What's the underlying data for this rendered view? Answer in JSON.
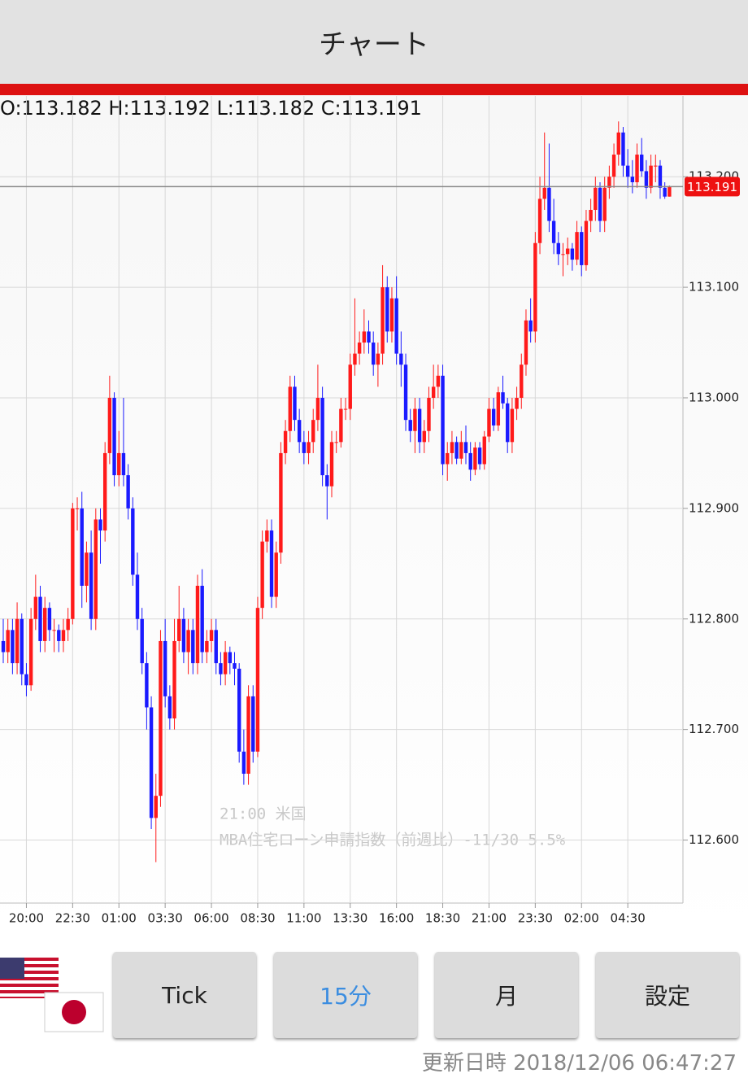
{
  "header": {
    "title": "チャート"
  },
  "chart_data": {
    "type": "candlestick",
    "ohlc_header": "O:113.182 H:113.192 L:113.182 C:113.191",
    "annotation": {
      "time": "21:00 米国",
      "text": "MBA住宅ローン申請指数（前週比）-11/30 5.5%"
    },
    "up_color": "#ff1a1a",
    "down_color": "#1a1aff",
    "grid": true,
    "ylim": [
      112.543,
      113.273
    ],
    "yticks": [
      {
        "value": 112.6,
        "label": "112.600"
      },
      {
        "value": 112.7,
        "label": "112.700"
      },
      {
        "value": 112.8,
        "label": "112.800"
      },
      {
        "value": 112.9,
        "label": "112.900"
      },
      {
        "value": 113.0,
        "label": "113.000"
      },
      {
        "value": 113.1,
        "label": "113.100"
      },
      {
        "value": 113.2,
        "label": "113.200"
      }
    ],
    "categories": [
      null,
      null,
      null,
      null,
      null,
      "20:00",
      null,
      null,
      null,
      null,
      null,
      null,
      null,
      null,
      null,
      "22:30",
      null,
      null,
      null,
      null,
      null,
      null,
      null,
      null,
      null,
      "01:00",
      null,
      null,
      null,
      null,
      null,
      null,
      null,
      null,
      null,
      "03:30",
      null,
      null,
      null,
      null,
      null,
      null,
      null,
      null,
      null,
      "06:00",
      null,
      null,
      null,
      null,
      null,
      null,
      null,
      null,
      null,
      "08:30",
      null,
      null,
      null,
      null,
      null,
      null,
      null,
      null,
      null,
      "11:00",
      null,
      null,
      null,
      null,
      null,
      null,
      null,
      null,
      null,
      "13:30",
      null,
      null,
      null,
      null,
      null,
      null,
      null,
      null,
      null,
      "16:00",
      null,
      null,
      null,
      null,
      null,
      null,
      null,
      null,
      null,
      "18:30",
      null,
      null,
      null,
      null,
      null,
      null,
      null,
      null,
      null,
      "21:00",
      null,
      null,
      null,
      null,
      null,
      null,
      null,
      null,
      null,
      "23:30",
      null,
      null,
      null,
      null,
      null,
      null,
      null,
      null,
      null,
      "02:00",
      null,
      null,
      null,
      null,
      null,
      null,
      null,
      null,
      null,
      "04:30",
      null,
      null,
      null,
      null,
      null,
      null,
      null,
      null,
      null
    ],
    "ohlc": [
      [
        112.78,
        112.8,
        112.76,
        112.77
      ],
      [
        112.77,
        112.8,
        112.76,
        112.79
      ],
      [
        112.79,
        112.8,
        112.75,
        112.76
      ],
      [
        112.76,
        112.815,
        112.75,
        112.8
      ],
      [
        112.8,
        112.805,
        112.74,
        112.75
      ],
      [
        112.75,
        112.76,
        112.73,
        112.74
      ],
      [
        112.74,
        112.81,
        112.735,
        112.8
      ],
      [
        112.8,
        112.84,
        112.79,
        112.82
      ],
      [
        112.82,
        112.83,
        112.77,
        112.78
      ],
      [
        112.78,
        112.82,
        112.77,
        112.81
      ],
      [
        112.81,
        112.815,
        112.78,
        112.79
      ],
      [
        112.79,
        112.8,
        112.77,
        112.79
      ],
      [
        112.79,
        112.795,
        112.77,
        112.78
      ],
      [
        112.78,
        112.8,
        112.77,
        112.79
      ],
      [
        112.79,
        112.81,
        112.78,
        112.8
      ],
      [
        112.8,
        112.905,
        112.795,
        112.9
      ],
      [
        112.9,
        112.91,
        112.88,
        112.9
      ],
      [
        112.9,
        112.915,
        112.81,
        112.83
      ],
      [
        112.83,
        112.87,
        112.815,
        112.86
      ],
      [
        112.86,
        112.88,
        112.79,
        112.8
      ],
      [
        112.8,
        112.9,
        112.79,
        112.89
      ],
      [
        112.89,
        112.9,
        112.85,
        112.88
      ],
      [
        112.88,
        112.96,
        112.87,
        112.95
      ],
      [
        112.95,
        113.02,
        112.94,
        113.0
      ],
      [
        113.0,
        113.005,
        112.92,
        112.93
      ],
      [
        112.93,
        112.97,
        112.92,
        112.95
      ],
      [
        112.95,
        113.0,
        112.92,
        112.93
      ],
      [
        112.93,
        112.94,
        112.89,
        112.9
      ],
      [
        112.9,
        112.91,
        112.83,
        112.84
      ],
      [
        112.84,
        112.86,
        112.79,
        112.8
      ],
      [
        112.8,
        112.81,
        112.75,
        112.76
      ],
      [
        112.76,
        112.77,
        112.7,
        112.72
      ],
      [
        112.72,
        112.73,
        112.61,
        112.62
      ],
      [
        112.62,
        112.66,
        112.58,
        112.64
      ],
      [
        112.64,
        112.79,
        112.63,
        112.78
      ],
      [
        112.78,
        112.8,
        112.72,
        112.73
      ],
      [
        112.73,
        112.74,
        112.7,
        112.71
      ],
      [
        112.71,
        112.8,
        112.7,
        112.78
      ],
      [
        112.78,
        112.83,
        112.77,
        112.8
      ],
      [
        112.8,
        112.81,
        112.76,
        112.77
      ],
      [
        112.77,
        112.8,
        112.75,
        112.79
      ],
      [
        112.79,
        112.8,
        112.75,
        112.76
      ],
      [
        112.76,
        112.84,
        112.75,
        112.83
      ],
      [
        112.83,
        112.845,
        112.76,
        112.77
      ],
      [
        112.77,
        112.79,
        112.76,
        112.78
      ],
      [
        112.78,
        112.8,
        112.77,
        112.79
      ],
      [
        112.79,
        112.8,
        112.75,
        112.76
      ],
      [
        112.76,
        112.77,
        112.74,
        112.75
      ],
      [
        112.75,
        112.78,
        112.74,
        112.77
      ],
      [
        112.77,
        112.775,
        112.75,
        112.76
      ],
      [
        112.76,
        112.77,
        112.74,
        112.755
      ],
      [
        112.755,
        112.76,
        112.67,
        112.68
      ],
      [
        112.68,
        112.7,
        112.65,
        112.66
      ],
      [
        112.66,
        112.74,
        112.65,
        112.73
      ],
      [
        112.73,
        112.74,
        112.67,
        112.68
      ],
      [
        112.68,
        112.82,
        112.675,
        112.81
      ],
      [
        112.81,
        112.88,
        112.8,
        112.87
      ],
      [
        112.87,
        112.89,
        112.86,
        112.88
      ],
      [
        112.88,
        112.89,
        112.81,
        112.82
      ],
      [
        112.82,
        112.87,
        112.81,
        112.86
      ],
      [
        112.86,
        112.96,
        112.85,
        112.95
      ],
      [
        112.95,
        112.98,
        112.94,
        112.97
      ],
      [
        112.97,
        113.02,
        112.96,
        113.01
      ],
      [
        113.01,
        113.02,
        112.97,
        112.98
      ],
      [
        112.98,
        112.99,
        112.95,
        112.96
      ],
      [
        112.96,
        112.97,
        112.94,
        112.95
      ],
      [
        112.95,
        112.97,
        112.94,
        112.96
      ],
      [
        112.96,
        112.99,
        112.95,
        112.98
      ],
      [
        112.98,
        113.03,
        112.97,
        113.0
      ],
      [
        113.0,
        113.01,
        112.92,
        112.93
      ],
      [
        112.93,
        112.94,
        112.89,
        112.92
      ],
      [
        112.92,
        112.97,
        112.91,
        112.96
      ],
      [
        112.96,
        112.97,
        112.95,
        112.96
      ],
      [
        112.96,
        113.0,
        112.955,
        112.99
      ],
      [
        112.99,
        113.0,
        112.98,
        112.99
      ],
      [
        112.99,
        113.04,
        112.98,
        113.03
      ],
      [
        113.03,
        113.09,
        113.02,
        113.04
      ],
      [
        113.04,
        113.06,
        113.03,
        113.05
      ],
      [
        113.05,
        113.08,
        113.04,
        113.06
      ],
      [
        113.06,
        113.07,
        113.04,
        113.05
      ],
      [
        113.05,
        113.06,
        113.02,
        113.03
      ],
      [
        113.03,
        113.05,
        113.01,
        113.04
      ],
      [
        113.04,
        113.12,
        113.03,
        113.1
      ],
      [
        113.1,
        113.11,
        113.05,
        113.06
      ],
      [
        113.06,
        113.1,
        113.05,
        113.09
      ],
      [
        113.09,
        113.11,
        113.03,
        113.04
      ],
      [
        113.04,
        113.06,
        113.01,
        113.03
      ],
      [
        113.03,
        113.04,
        112.97,
        112.98
      ],
      [
        112.98,
        112.99,
        112.96,
        112.97
      ],
      [
        112.97,
        113.0,
        112.95,
        112.99
      ],
      [
        112.99,
        113.0,
        112.95,
        112.96
      ],
      [
        112.96,
        112.98,
        112.95,
        112.97
      ],
      [
        112.97,
        113.01,
        112.96,
        113.0
      ],
      [
        113.0,
        113.03,
        112.99,
        113.01
      ],
      [
        113.01,
        113.03,
        113.0,
        113.02
      ],
      [
        113.02,
        113.03,
        112.93,
        112.94
      ],
      [
        112.94,
        112.96,
        112.925,
        112.95
      ],
      [
        112.95,
        112.97,
        112.94,
        112.96
      ],
      [
        112.96,
        112.965,
        112.94,
        112.945
      ],
      [
        112.945,
        112.97,
        112.94,
        112.96
      ],
      [
        112.96,
        112.975,
        112.94,
        112.95
      ],
      [
        112.95,
        112.96,
        112.925,
        112.935
      ],
      [
        112.935,
        112.96,
        112.93,
        112.955
      ],
      [
        112.955,
        112.96,
        112.935,
        112.94
      ],
      [
        112.94,
        112.97,
        112.935,
        112.965
      ],
      [
        112.965,
        113.0,
        112.96,
        112.99
      ],
      [
        112.99,
        113.0,
        112.97,
        112.975
      ],
      [
        112.975,
        113.01,
        112.97,
        113.005
      ],
      [
        113.005,
        113.02,
        112.99,
        112.995
      ],
      [
        112.995,
        113.0,
        112.95,
        112.96
      ],
      [
        112.96,
        113.0,
        112.95,
        112.99
      ],
      [
        112.99,
        113.01,
        112.98,
        113.0
      ],
      [
        113.0,
        113.04,
        112.99,
        113.03
      ],
      [
        113.03,
        113.08,
        113.02,
        113.07
      ],
      [
        113.07,
        113.09,
        113.05,
        113.06
      ],
      [
        113.06,
        113.15,
        113.05,
        113.14
      ],
      [
        113.14,
        113.2,
        113.13,
        113.18
      ],
      [
        113.18,
        113.24,
        113.17,
        113.19
      ],
      [
        113.19,
        113.23,
        113.15,
        113.16
      ],
      [
        113.16,
        113.18,
        113.13,
        113.14
      ],
      [
        113.14,
        113.15,
        113.12,
        113.13
      ],
      [
        113.13,
        113.14,
        113.11,
        113.13
      ],
      [
        113.13,
        113.145,
        113.12,
        113.135
      ],
      [
        113.135,
        113.14,
        113.115,
        113.125
      ],
      [
        113.125,
        113.16,
        113.12,
        113.15
      ],
      [
        113.15,
        113.155,
        113.11,
        113.12
      ],
      [
        113.12,
        113.17,
        113.115,
        113.16
      ],
      [
        113.16,
        113.18,
        113.15,
        113.17
      ],
      [
        113.17,
        113.2,
        113.16,
        113.19
      ],
      [
        113.19,
        113.195,
        113.15,
        113.16
      ],
      [
        113.16,
        113.2,
        113.15,
        113.19
      ],
      [
        113.19,
        113.21,
        113.18,
        113.2
      ],
      [
        113.2,
        113.23,
        113.19,
        113.22
      ],
      [
        113.22,
        113.25,
        113.21,
        113.24
      ],
      [
        113.24,
        113.245,
        113.2,
        113.21
      ],
      [
        113.21,
        113.225,
        113.19,
        113.2
      ],
      [
        113.2,
        113.215,
        113.185,
        113.195
      ],
      [
        113.195,
        113.23,
        113.19,
        113.22
      ],
      [
        113.22,
        113.235,
        113.2,
        113.205
      ],
      [
        113.205,
        113.215,
        113.18,
        113.19
      ],
      [
        113.19,
        113.22,
        113.185,
        113.21
      ],
      [
        113.21,
        113.22,
        113.195,
        113.21
      ],
      [
        113.21,
        113.215,
        113.18,
        113.19
      ],
      [
        113.19,
        113.195,
        113.18,
        113.182
      ],
      [
        113.182,
        113.192,
        113.182,
        113.191
      ]
    ]
  },
  "buttons": [
    "Tick",
    "15分",
    "月",
    "設定"
  ],
  "footer": {
    "updated": "更新日時 2018/12/06 06:47:27"
  }
}
